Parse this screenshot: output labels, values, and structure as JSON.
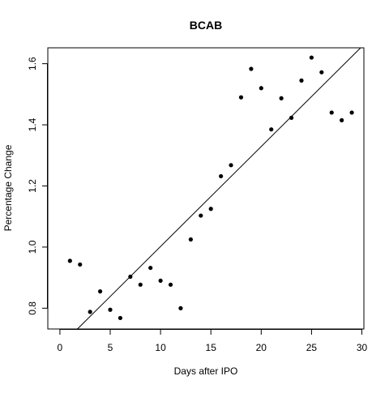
{
  "chart_data": {
    "type": "scatter",
    "title": "BCAB",
    "xlabel": "Days after IPO",
    "ylabel": "Percentage Change",
    "xlim": [
      -1.2,
      30.2
    ],
    "ylim": [
      0.732,
      1.652
    ],
    "xticks": [
      "0",
      "5",
      "10",
      "15",
      "20",
      "25",
      "30"
    ],
    "yticks": [
      "0.8",
      "1.0",
      "1.2",
      "1.4",
      "1.6"
    ],
    "xtick_values": [
      0,
      5,
      10,
      15,
      20,
      25,
      30
    ],
    "ytick_values": [
      0.8,
      1.0,
      1.2,
      1.4,
      1.6
    ],
    "grid": false,
    "legend": "none",
    "series": [
      {
        "x": [
          1,
          2,
          3,
          4,
          5,
          6,
          7,
          8,
          9,
          10,
          11,
          12,
          13,
          14,
          15,
          16,
          17,
          18,
          19,
          20,
          21,
          22,
          23,
          24,
          25,
          26,
          27,
          28,
          29
        ],
        "y": [
          0.955,
          0.943,
          0.788,
          0.855,
          0.795,
          0.768,
          0.903,
          0.877,
          0.932,
          0.89,
          0.877,
          0.8,
          1.025,
          1.103,
          1.125,
          1.232,
          1.268,
          1.49,
          1.583,
          1.52,
          1.385,
          1.487,
          1.423,
          1.545,
          1.62,
          1.572,
          1.44,
          1.415,
          1.44
        ]
      }
    ],
    "regression_line": {
      "intercept": 0.675,
      "slope": 0.0327
    }
  }
}
